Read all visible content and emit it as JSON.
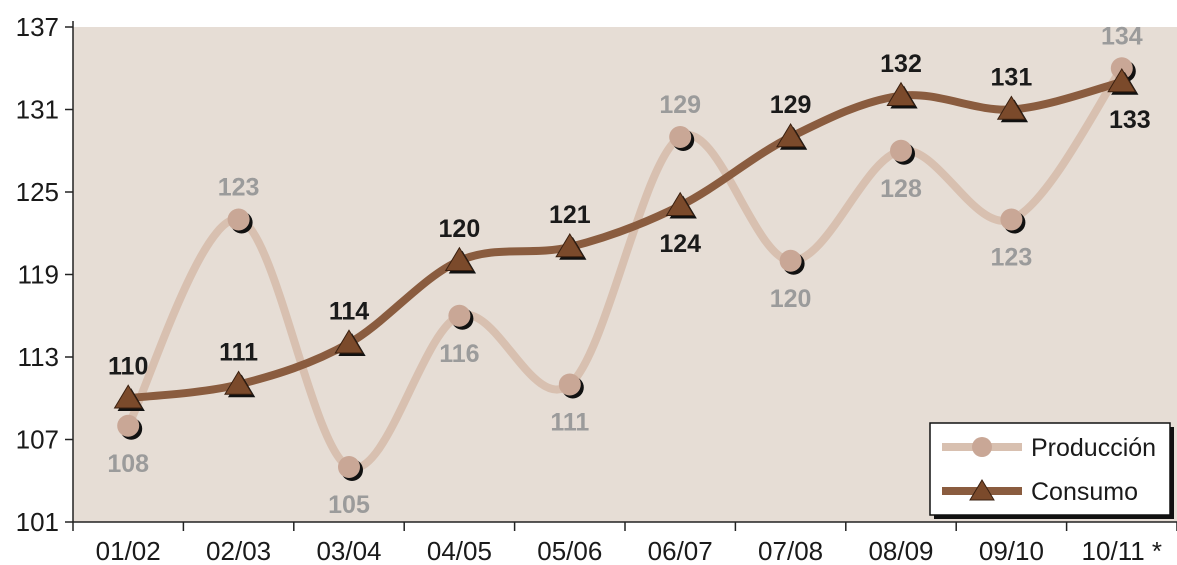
{
  "chart_data": {
    "type": "line",
    "title": "",
    "xlabel": "",
    "ylabel": "",
    "categories": [
      "01/02",
      "02/03",
      "03/04",
      "04/05",
      "05/06",
      "06/07",
      "07/08",
      "08/09",
      "09/10",
      "10/11 *"
    ],
    "ylim": [
      101,
      137
    ],
    "yticks": [
      101,
      107,
      113,
      119,
      125,
      131,
      137
    ],
    "grid": false,
    "legend_position": "bottom-right",
    "background_color": "#e6ddd5",
    "series": [
      {
        "name": "Producción",
        "values": [
          108,
          123,
          105,
          116,
          111,
          129,
          120,
          128,
          123,
          134
        ],
        "color": "#d8c0b0",
        "marker_color": "#c9a796",
        "label_color": "#9b9b9b",
        "marker": "circle"
      },
      {
        "name": "Consumo",
        "values": [
          110,
          111,
          114,
          120,
          121,
          124,
          129,
          132,
          131,
          133
        ],
        "color": "#8a5c3f",
        "marker_color": "#7b4a2b",
        "label_color": "#1a1a1a",
        "marker": "triangle"
      }
    ]
  }
}
